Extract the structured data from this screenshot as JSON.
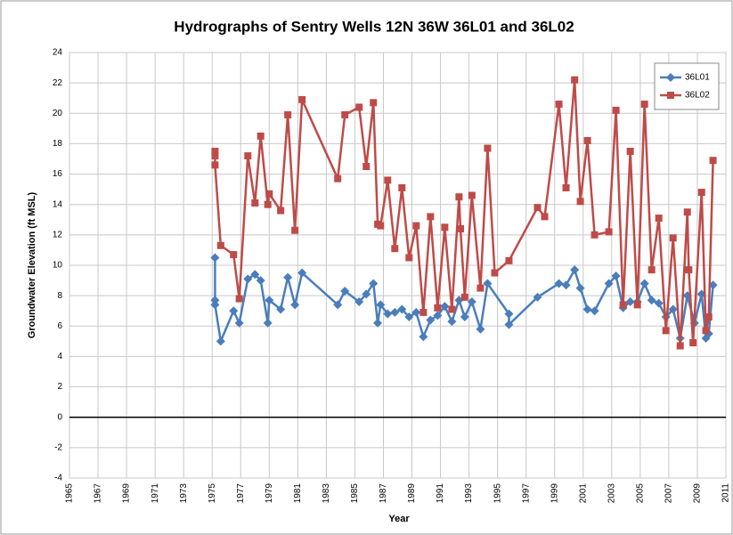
{
  "chart_data": {
    "type": "line",
    "title": "Hydrographs of Sentry Wells 12N 36W 36L01 and 36L02",
    "x_label": "Year",
    "y_label": "Groundwater Elevation (ft MSL)",
    "xlim": [
      1965,
      2011
    ],
    "xticks": [
      1965,
      1967,
      1969,
      1971,
      1973,
      1975,
      1977,
      1979,
      1981,
      1983,
      1985,
      1987,
      1989,
      1991,
      1993,
      1995,
      1997,
      1999,
      2001,
      2003,
      2005,
      2007,
      2009,
      2011
    ],
    "ylim": [
      -4,
      24
    ],
    "yticks": [
      -4,
      -2,
      0,
      2,
      4,
      6,
      8,
      10,
      12,
      14,
      16,
      18,
      20,
      22,
      24
    ],
    "grid": true,
    "legend": "top-right",
    "series": [
      {
        "name": "36L01",
        "color": "#4a7ebb",
        "marker": "diamond",
        "x": [
          1975.2,
          1975.2,
          1975.2,
          1975.6,
          1976.5,
          1976.9,
          1977.5,
          1978.0,
          1978.4,
          1978.9,
          1979.0,
          1979.8,
          1980.3,
          1980.8,
          1981.3,
          1983.8,
          1984.3,
          1985.3,
          1985.8,
          1986.3,
          1986.6,
          1986.8,
          1987.3,
          1987.8,
          1988.3,
          1988.8,
          1989.3,
          1989.8,
          1990.3,
          1990.8,
          1991.3,
          1991.8,
          1992.3,
          1992.7,
          1993.2,
          1993.8,
          1994.3,
          1995.8,
          1995.8,
          1997.8,
          1999.3,
          1999.8,
          2000.4,
          2000.8,
          2001.3,
          2001.8,
          2002.8,
          2003.3,
          2003.8,
          2004.3,
          2004.8,
          2005.3,
          2005.8,
          2006.3,
          2006.8,
          2007.3,
          2007.8,
          2008.3,
          2008.8,
          2009.3,
          2009.6,
          2009.8,
          2010.1
        ],
        "values": [
          10.5,
          7.7,
          7.4,
          5.0,
          7.0,
          6.2,
          9.1,
          9.4,
          9.0,
          6.2,
          7.7,
          7.1,
          9.2,
          7.4,
          9.5,
          7.4,
          8.3,
          7.6,
          8.1,
          8.8,
          6.2,
          7.4,
          6.8,
          6.9,
          7.1,
          6.6,
          6.9,
          5.3,
          6.4,
          6.7,
          7.3,
          6.3,
          7.7,
          6.6,
          7.6,
          5.8,
          8.8,
          6.8,
          6.1,
          7.9,
          8.8,
          8.7,
          9.7,
          8.5,
          7.1,
          7.0,
          8.8,
          9.3,
          7.2,
          7.6,
          7.6,
          8.8,
          7.7,
          7.5,
          6.6,
          7.1,
          5.2,
          8.0,
          6.2,
          8.1,
          5.2,
          5.5,
          8.7
        ]
      },
      {
        "name": "36L02",
        "color": "#be4b48",
        "marker": "square",
        "x": [
          1975.2,
          1975.2,
          1975.2,
          1975.6,
          1976.5,
          1976.9,
          1977.5,
          1978.0,
          1978.4,
          1978.9,
          1979.0,
          1979.8,
          1980.3,
          1980.8,
          1981.3,
          1983.8,
          1984.3,
          1985.3,
          1985.8,
          1986.3,
          1986.6,
          1986.8,
          1987.3,
          1987.8,
          1988.3,
          1988.8,
          1989.3,
          1989.8,
          1990.3,
          1990.8,
          1991.3,
          1991.8,
          1992.3,
          1992.4,
          1992.7,
          1993.2,
          1993.8,
          1994.3,
          1994.8,
          1995.8,
          1997.8,
          1998.3,
          1999.3,
          1999.8,
          2000.4,
          2000.8,
          2001.3,
          2001.8,
          2002.8,
          2003.3,
          2003.8,
          2004.3,
          2004.8,
          2005.3,
          2005.8,
          2006.3,
          2006.8,
          2007.3,
          2007.8,
          2008.3,
          2008.4,
          2008.7,
          2009.3,
          2009.6,
          2009.8,
          2010.1
        ],
        "values": [
          17.5,
          17.2,
          16.6,
          11.3,
          10.7,
          7.8,
          17.2,
          14.1,
          18.5,
          14.0,
          14.7,
          13.6,
          19.9,
          12.3,
          20.9,
          15.7,
          19.9,
          20.4,
          16.5,
          20.7,
          12.7,
          12.6,
          15.6,
          11.1,
          15.1,
          10.5,
          12.6,
          6.9,
          13.2,
          7.2,
          12.5,
          7.1,
          14.5,
          12.4,
          7.9,
          14.6,
          8.5,
          17.7,
          9.5,
          10.3,
          13.8,
          13.2,
          20.6,
          15.1,
          22.2,
          14.2,
          18.2,
          12.0,
          12.2,
          20.2,
          7.4,
          17.5,
          7.4,
          20.6,
          9.7,
          13.1,
          5.7,
          11.8,
          4.7,
          13.5,
          9.7,
          4.9,
          14.8,
          5.7,
          6.6,
          16.9
        ]
      }
    ]
  }
}
